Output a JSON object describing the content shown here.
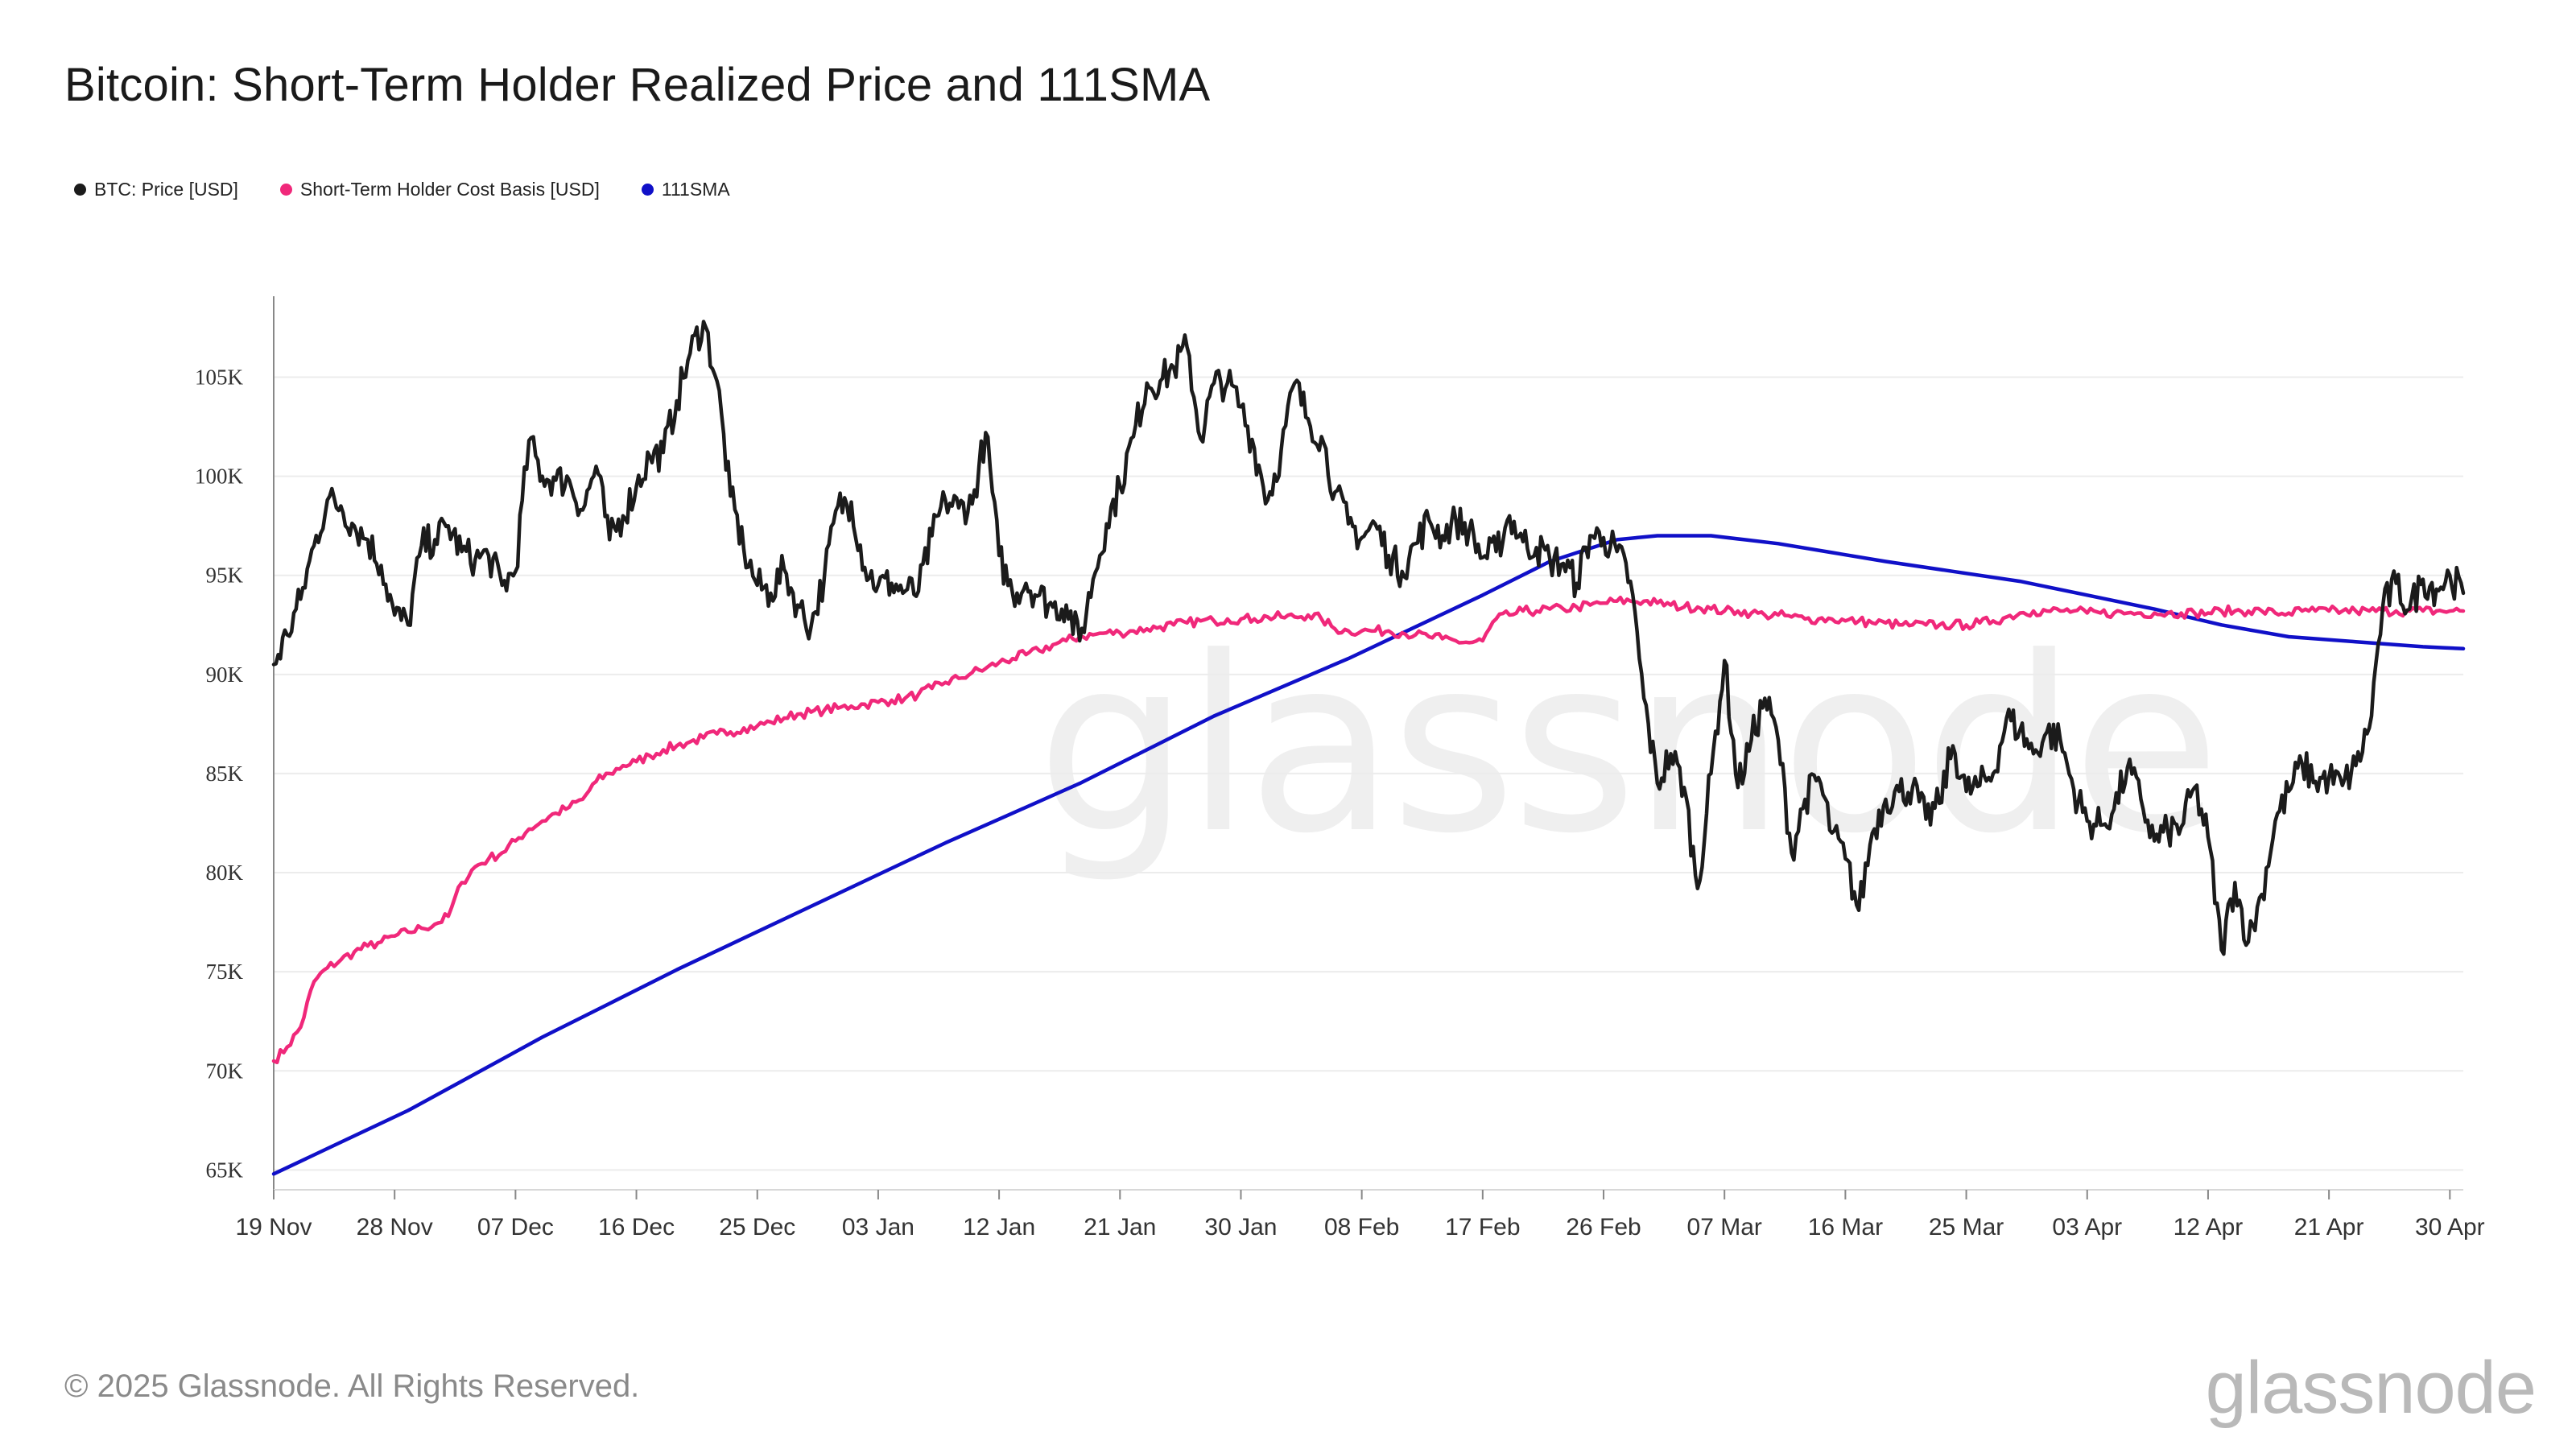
{
  "title": "Bitcoin: Short-Term Holder Realized Price and 111SMA",
  "footer": "© 2025 Glassnode. All Rights Reserved.",
  "brand": "glassnode",
  "watermark": "glassnode",
  "legend": [
    {
      "label": "BTC: Price [USD]",
      "color": "#1b1b1b"
    },
    {
      "label": "Short-Term Holder Cost Basis [USD]",
      "color": "#f0287a"
    },
    {
      "label": "111SMA",
      "color": "#1010c8"
    }
  ],
  "chart_data": {
    "type": "line",
    "title": "Bitcoin: Short-Term Holder Realized Price and 111SMA",
    "x_labels": [
      "19 Nov",
      "28 Nov",
      "07 Dec",
      "16 Dec",
      "25 Dec",
      "03 Jan",
      "12 Jan",
      "21 Jan",
      "30 Jan",
      "08 Feb",
      "17 Feb",
      "26 Feb",
      "07 Mar",
      "16 Mar",
      "25 Mar",
      "03 Apr",
      "12 Apr",
      "21 Apr",
      "30 Apr"
    ],
    "x_range_days": [
      0,
      163
    ],
    "ylim": [
      64000,
      109000
    ],
    "y_ticks": [
      65000,
      70000,
      75000,
      80000,
      85000,
      90000,
      95000,
      100000,
      105000
    ],
    "y_tick_labels": [
      "65K",
      "70K",
      "75K",
      "80K",
      "85K",
      "90K",
      "95K",
      "100K",
      "105K"
    ],
    "grid": true,
    "legend_position": "top-left",
    "series": [
      {
        "name": "BTC: Price [USD]",
        "color": "#1b1b1b",
        "x": [
          0,
          1,
          2,
          3,
          4,
          5,
          6,
          7,
          8,
          9,
          10,
          11,
          12,
          13,
          14,
          15,
          16,
          17,
          18,
          19,
          20,
          21,
          22,
          23,
          24,
          25,
          26,
          27,
          28,
          29,
          30,
          31,
          32,
          33,
          34,
          35,
          36,
          37,
          38,
          39,
          40,
          41,
          42,
          43,
          44,
          45,
          46,
          47,
          48,
          49,
          50,
          51,
          52,
          53,
          54,
          55,
          56,
          57,
          58,
          59,
          60,
          61,
          62,
          63,
          64,
          65,
          66,
          67,
          68,
          69,
          70,
          71,
          72,
          73,
          74,
          75,
          76,
          77,
          78,
          79,
          80,
          81,
          82,
          83,
          84,
          85,
          86,
          87,
          88,
          89,
          90,
          91,
          92,
          93,
          94,
          95,
          96,
          97,
          98,
          99,
          100,
          101,
          102,
          103,
          104,
          105,
          106,
          107,
          108,
          109,
          110,
          111,
          112,
          113,
          114,
          115,
          116,
          117,
          118,
          119,
          120,
          121,
          122,
          123,
          124,
          125,
          126,
          127,
          128,
          129,
          130,
          131,
          132,
          133,
          134,
          135,
          136,
          137,
          138,
          139,
          140,
          141,
          142,
          143,
          144,
          145,
          146,
          147,
          148,
          149,
          150,
          151,
          152,
          153,
          154,
          155,
          156,
          157,
          158,
          159,
          160,
          161,
          162,
          163
        ],
        "values": [
          90500,
          92000,
          93800,
          96500,
          98800,
          98500,
          97500,
          96800,
          95500,
          93000,
          92500,
          96500,
          96800,
          97500,
          96200,
          95800,
          96000,
          94500,
          95200,
          101800,
          100000,
          99800,
          99800,
          98300,
          100500,
          96800,
          98000,
          99500,
          101000,
          101200,
          103800,
          106200,
          107800,
          104800,
          99000,
          96300,
          94500,
          94100,
          95300,
          93500,
          92400,
          95000,
          98500,
          98700,
          95400,
          94500,
          94600,
          94200,
          94200,
          97000,
          98800,
          98400,
          98600,
          102200,
          96000,
          94100,
          94600,
          94000,
          93400,
          93500,
          91700,
          94800,
          97600,
          99500,
          102000,
          104700,
          104800,
          105500,
          106500,
          101900,
          104700,
          104700,
          103500,
          101400,
          98800,
          101300,
          104700,
          102900,
          102000,
          99200,
          97600,
          96900,
          97600,
          96000,
          95200,
          96600,
          97800,
          97000,
          97800,
          97300,
          95900,
          96200,
          98000,
          96700,
          96400,
          95800,
          95600,
          94600,
          97000,
          96900,
          96200,
          94700,
          88800,
          84500,
          86000,
          84300,
          79200,
          85000,
          90700,
          84300,
          86700,
          88800,
          86700,
          81000,
          83700,
          84800,
          82000,
          80700,
          78100,
          82000,
          83700,
          84100,
          84300,
          82700,
          83500,
          86400,
          84100,
          84400,
          85000,
          87800,
          87200,
          86000,
          87100,
          86700,
          84200,
          82600,
          82400,
          83200,
          85300,
          83700,
          81600,
          82100,
          82300,
          84300,
          81800,
          76100,
          79500,
          76500,
          78900,
          82600,
          84100,
          85500,
          84600,
          84800,
          84400,
          85400,
          87300,
          93400,
          94600,
          93300,
          94800,
          94300,
          95000,
          94100
        ]
      },
      {
        "name": "Short-Term Holder Cost Basis [USD]",
        "color": "#f0287a",
        "x": [
          0,
          1,
          2,
          3,
          4,
          5,
          6,
          7,
          8,
          9,
          10,
          11,
          12,
          13,
          14,
          15,
          16,
          17,
          18,
          19,
          20,
          21,
          22,
          23,
          24,
          25,
          26,
          27,
          28,
          29,
          30,
          31,
          32,
          33,
          34,
          35,
          36,
          37,
          38,
          39,
          40,
          41,
          42,
          43,
          44,
          45,
          46,
          47,
          48,
          49,
          50,
          51,
          52,
          53,
          54,
          55,
          56,
          57,
          58,
          59,
          60,
          61,
          62,
          63,
          64,
          65,
          66,
          67,
          68,
          69,
          70,
          71,
          72,
          73,
          74,
          75,
          76,
          77,
          78,
          79,
          80,
          81,
          82,
          83,
          84,
          85,
          86,
          87,
          88,
          89,
          90,
          91,
          92,
          93,
          94,
          95,
          96,
          97,
          98,
          99,
          100,
          101,
          102,
          103,
          104,
          105,
          106,
          107,
          108,
          109,
          110,
          111,
          112,
          113,
          114,
          115,
          116,
          117,
          118,
          119,
          120,
          121,
          122,
          123,
          124,
          125,
          126,
          127,
          128,
          129,
          130,
          131,
          132,
          133,
          134,
          135,
          136,
          137,
          138,
          139,
          140,
          141,
          142,
          143,
          144,
          145,
          146,
          147,
          148,
          149,
          150,
          151,
          152,
          153,
          154,
          155,
          156,
          157,
          158,
          159,
          160,
          161,
          162,
          163
        ],
        "values": [
          70500,
          71200,
          72200,
          74500,
          75200,
          75600,
          76000,
          76300,
          76500,
          76800,
          77000,
          77200,
          77400,
          77800,
          79500,
          80300,
          80700,
          81000,
          81600,
          82200,
          82600,
          83000,
          83300,
          83700,
          84600,
          85000,
          85400,
          85600,
          85900,
          86200,
          86400,
          86600,
          86800,
          87000,
          87100,
          87300,
          87400,
          87600,
          87800,
          88000,
          88100,
          88200,
          88300,
          88400,
          88500,
          88600,
          88700,
          88800,
          89000,
          89300,
          89600,
          89800,
          90100,
          90300,
          90600,
          90800,
          91000,
          91200,
          91500,
          91700,
          91900,
          92000,
          92100,
          92100,
          92200,
          92300,
          92400,
          92500,
          92600,
          92700,
          92700,
          92800,
          92800,
          92800,
          92900,
          92900,
          92900,
          93000,
          92800,
          92300,
          92200,
          92200,
          92200,
          92200,
          92100,
          92000,
          91900,
          91800,
          91700,
          91600,
          91700,
          92800,
          93000,
          93200,
          93200,
          93300,
          93300,
          93400,
          93500,
          93600,
          93700,
          93700,
          93700,
          93600,
          93500,
          93400,
          93400,
          93300,
          93200,
          93200,
          93100,
          93000,
          93000,
          92900,
          92800,
          92800,
          92800,
          92700,
          92700,
          92600,
          92600,
          92500,
          92500,
          92500,
          92500,
          92500,
          92500,
          92600,
          92700,
          92900,
          93100,
          93200,
          93200,
          93200,
          93200,
          93100,
          93100,
          93100,
          93100,
          93100,
          93100,
          93100,
          93100,
          93100,
          93100,
          93200,
          93200,
          93200,
          93200,
          93100,
          93100,
          93200,
          93200,
          93200,
          93200,
          93200,
          93200,
          93200,
          93200,
          93200,
          93200,
          93200,
          93200,
          93200
        ]
      },
      {
        "name": "111SMA",
        "color": "#1010c8",
        "x": [
          0,
          10,
          20,
          30,
          40,
          50,
          60,
          70,
          80,
          90,
          95,
          100,
          103,
          107,
          112,
          120,
          130,
          140,
          145,
          150,
          160,
          163
        ],
        "values": [
          64800,
          68000,
          71700,
          75100,
          78300,
          81500,
          84500,
          87900,
          90800,
          94000,
          95700,
          96800,
          97000,
          97000,
          96600,
          95700,
          94700,
          93300,
          92500,
          91900,
          91400,
          91300
        ]
      }
    ]
  }
}
